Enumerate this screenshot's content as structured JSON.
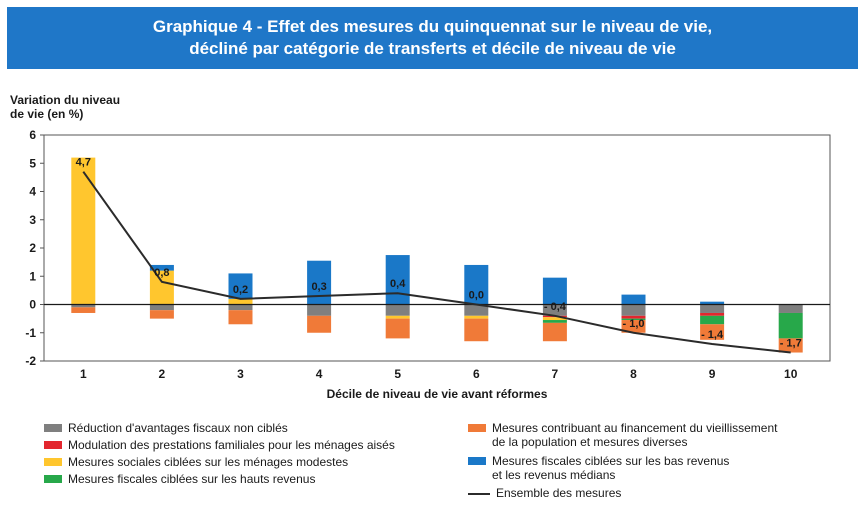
{
  "title_lines": [
    "Graphique 4 - Effet des mesures du quinquennat sur le niveau de vie,",
    "décliné par catégorie de transferts et décile de niveau de vie"
  ],
  "colors": {
    "banner": "#1f77c8",
    "grey": "#7f7f7f",
    "red": "#e3262e",
    "yellow": "#ffc62e",
    "green": "#27a84a",
    "orange": "#f07a38",
    "blue": "#1a78c8",
    "line": "#2b2b2b"
  },
  "chart_data": {
    "type": "bar",
    "stacked": true,
    "ylabel_lines": [
      "Variation du niveau",
      "de vie (en %)"
    ],
    "xlabel": "Décile de niveau de vie avant réformes",
    "categories": [
      "1",
      "2",
      "3",
      "4",
      "5",
      "6",
      "7",
      "8",
      "9",
      "10"
    ],
    "ylim": [
      -2,
      6
    ],
    "yticks": [
      "-2",
      "-1",
      "0",
      "1",
      "2",
      "3",
      "4",
      "5",
      "6"
    ],
    "series": [
      {
        "name": "Réduction d'avantages fiscaux non ciblés",
        "color": "grey",
        "values": [
          -0.1,
          -0.2,
          -0.2,
          -0.4,
          -0.4,
          -0.4,
          -0.4,
          -0.4,
          -0.3,
          -0.3
        ]
      },
      {
        "name": "Modulation des prestations familiales pour les ménages aisés",
        "color": "red",
        "values": [
          0,
          0,
          0,
          0,
          0,
          0,
          -0.05,
          -0.1,
          -0.1,
          0
        ]
      },
      {
        "name": "Mesures sociales ciblées sur les ménages modestes",
        "color": "yellow",
        "values": [
          5.2,
          1.2,
          0.2,
          0,
          -0.1,
          -0.1,
          -0.1,
          0,
          0,
          0
        ]
      },
      {
        "name": "Mesures fiscales ciblées sur les hauts revenus",
        "color": "green",
        "values": [
          0,
          0,
          0,
          0,
          0,
          0,
          -0.1,
          -0.05,
          -0.3,
          -0.9
        ]
      },
      {
        "name": "Mesures contribuant au financement du vieillissement de la population et mesures diverses",
        "color": "orange",
        "values": [
          -0.2,
          -0.3,
          -0.5,
          -0.6,
          -0.7,
          -0.8,
          -0.65,
          -0.45,
          -0.55,
          -0.5
        ]
      },
      {
        "name": "Mesures fiscales ciblées sur les bas revenus et les revenus médians",
        "color": "blue",
        "values": [
          0,
          0.2,
          0.9,
          1.55,
          1.75,
          1.4,
          0.95,
          0.35,
          0.1,
          0
        ]
      }
    ],
    "total": {
      "name": "Ensemble des mesures",
      "values": [
        4.7,
        0.8,
        0.2,
        0.3,
        0.4,
        0.0,
        -0.4,
        -1.0,
        -1.4,
        -1.7
      ],
      "labels": [
        "4,7",
        "0,8",
        "0,2",
        "0,3",
        "0,4",
        "0,0",
        "- 0,4",
        "- 1,0",
        "- 1,4",
        "- 1,7"
      ]
    },
    "grid": false,
    "legend_position": "bottom"
  },
  "legend": {
    "left": [
      {
        "color": "grey",
        "lines": [
          "Réduction d'avantages fiscaux non ciblés"
        ]
      },
      {
        "color": "red",
        "lines": [
          "Modulation des prestations familiales pour les ménages aisés"
        ]
      },
      {
        "color": "yellow",
        "lines": [
          "Mesures sociales ciblées sur les ménages modestes"
        ]
      },
      {
        "color": "green",
        "lines": [
          "Mesures fiscales ciblées sur les hauts revenus"
        ]
      }
    ],
    "right": [
      {
        "color": "orange",
        "lines": [
          "Mesures contribuant au financement du vieillissement",
          "de la population et mesures diverses"
        ]
      },
      {
        "color": "blue",
        "lines": [
          "Mesures fiscales ciblées sur les bas revenus",
          "et les revenus médians"
        ]
      },
      {
        "color": "line",
        "lines": [
          "Ensemble des mesures"
        ],
        "is_line": true
      }
    ]
  }
}
